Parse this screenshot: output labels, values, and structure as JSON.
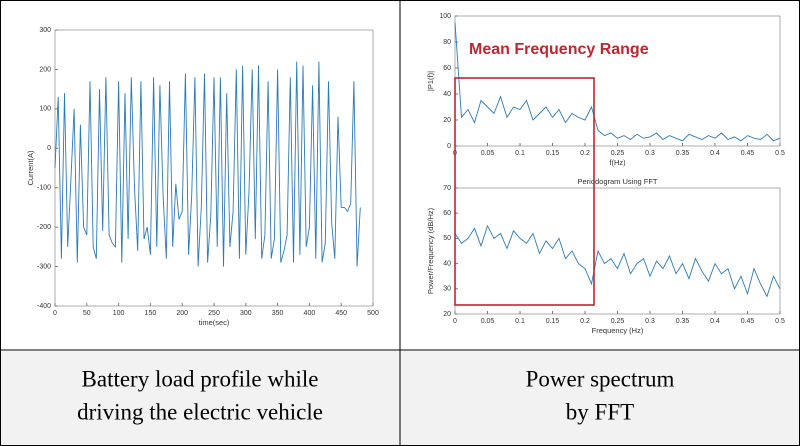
{
  "chart_data": [
    {
      "type": "line",
      "xlabel": "time(sec)",
      "ylabel": "Current(A)",
      "xlim": [
        0,
        500
      ],
      "ylim": [
        -400,
        300
      ],
      "xticks": [
        0,
        50,
        100,
        150,
        200,
        250,
        300,
        350,
        400,
        450,
        500
      ],
      "yticks": [
        -400,
        -300,
        -200,
        -100,
        0,
        100,
        200,
        300
      ],
      "grid": false,
      "x": [
        0,
        5,
        10,
        15,
        20,
        25,
        30,
        35,
        40,
        45,
        50,
        55,
        60,
        65,
        70,
        75,
        80,
        85,
        90,
        95,
        100,
        105,
        110,
        115,
        120,
        125,
        130,
        135,
        140,
        145,
        150,
        155,
        160,
        165,
        170,
        175,
        180,
        185,
        190,
        195,
        200,
        205,
        210,
        215,
        220,
        225,
        230,
        235,
        240,
        245,
        250,
        255,
        260,
        265,
        270,
        275,
        280,
        285,
        290,
        295,
        300,
        305,
        310,
        315,
        320,
        325,
        330,
        335,
        340,
        345,
        350,
        355,
        360,
        365,
        370,
        375,
        380,
        385,
        390,
        395,
        400,
        405,
        410,
        415,
        420,
        425,
        430,
        435,
        440,
        445,
        450,
        455,
        460,
        465,
        470,
        475,
        480
      ],
      "series": [
        {
          "color": "#2b7bba",
          "values": [
            -50,
            130,
            -280,
            140,
            -250,
            -80,
            100,
            -290,
            60,
            -200,
            -220,
            170,
            -250,
            -280,
            150,
            -210,
            180,
            -220,
            -240,
            -250,
            170,
            -290,
            140,
            -230,
            180,
            -100,
            -260,
            170,
            -230,
            -200,
            -270,
            180,
            -250,
            160,
            -120,
            -280,
            170,
            -250,
            -90,
            -180,
            -160,
            190,
            -270,
            -120,
            180,
            -300,
            -150,
            190,
            -290,
            -170,
            180,
            -250,
            180,
            -300,
            140,
            -250,
            -160,
            200,
            -280,
            210,
            -270,
            -110,
            200,
            -230,
            210,
            -280,
            -220,
            170,
            -280,
            -230,
            200,
            -290,
            -260,
            -220,
            180,
            -290,
            220,
            -270,
            210,
            -250,
            -200,
            160,
            -280,
            220,
            -290,
            -240,
            170,
            -190,
            -280,
            80,
            -150,
            -150,
            -160,
            -140,
            170,
            -300,
            -150
          ]
        }
      ]
    },
    {
      "type": "line",
      "xlabel": "f(Hz)",
      "ylabel": "|P1(f)|",
      "annotation": "Mean Frequency Range",
      "xlim": [
        0,
        0.5
      ],
      "ylim": [
        0,
        100
      ],
      "xticks": [
        0,
        0.05,
        0.1,
        0.15,
        0.2,
        0.25,
        0.3,
        0.35,
        0.4,
        0.45,
        0.5
      ],
      "yticks": [
        0,
        20,
        40,
        60,
        80,
        100
      ],
      "grid": false,
      "x": [
        0,
        0.01,
        0.02,
        0.03,
        0.04,
        0.05,
        0.06,
        0.07,
        0.08,
        0.09,
        0.1,
        0.11,
        0.12,
        0.13,
        0.14,
        0.15,
        0.16,
        0.17,
        0.18,
        0.19,
        0.2,
        0.21,
        0.22,
        0.23,
        0.24,
        0.25,
        0.26,
        0.27,
        0.28,
        0.29,
        0.3,
        0.31,
        0.32,
        0.33,
        0.34,
        0.35,
        0.36,
        0.37,
        0.38,
        0.39,
        0.4,
        0.41,
        0.42,
        0.43,
        0.44,
        0.45,
        0.46,
        0.47,
        0.48,
        0.49,
        0.5
      ],
      "series": [
        {
          "color": "#2b7bba",
          "values": [
            95,
            22,
            28,
            18,
            35,
            30,
            25,
            38,
            22,
            30,
            28,
            35,
            20,
            25,
            30,
            22,
            28,
            18,
            25,
            22,
            20,
            30,
            12,
            8,
            10,
            6,
            8,
            5,
            9,
            6,
            7,
            10,
            5,
            8,
            6,
            4,
            9,
            7,
            5,
            8,
            6,
            10,
            5,
            7,
            4,
            8,
            6,
            5,
            9,
            4,
            6
          ]
        }
      ]
    },
    {
      "type": "line",
      "title": "Periodogram Using FFT",
      "xlabel": "Frequency (Hz)",
      "ylabel": "Power/Frequency (dB/Hz)",
      "xlim": [
        0,
        0.5
      ],
      "ylim": [
        20,
        70
      ],
      "xticks": [
        0,
        0.05,
        0.1,
        0.15,
        0.2,
        0.25,
        0.3,
        0.35,
        0.4,
        0.45,
        0.5
      ],
      "yticks": [
        20,
        30,
        40,
        50,
        60,
        70
      ],
      "grid": false,
      "x": [
        0,
        0.01,
        0.02,
        0.03,
        0.04,
        0.05,
        0.06,
        0.07,
        0.08,
        0.09,
        0.1,
        0.11,
        0.12,
        0.13,
        0.14,
        0.15,
        0.16,
        0.17,
        0.18,
        0.19,
        0.2,
        0.21,
        0.22,
        0.23,
        0.24,
        0.25,
        0.26,
        0.27,
        0.28,
        0.29,
        0.3,
        0.31,
        0.32,
        0.33,
        0.34,
        0.35,
        0.36,
        0.37,
        0.38,
        0.39,
        0.4,
        0.41,
        0.42,
        0.43,
        0.44,
        0.45,
        0.46,
        0.47,
        0.48,
        0.49,
        0.5
      ],
      "series": [
        {
          "color": "#2b7bba",
          "values": [
            52,
            48,
            50,
            54,
            47,
            55,
            50,
            52,
            46,
            53,
            50,
            48,
            52,
            44,
            49,
            46,
            50,
            42,
            45,
            40,
            38,
            32,
            45,
            40,
            42,
            38,
            44,
            36,
            40,
            42,
            35,
            41,
            38,
            43,
            36,
            40,
            34,
            42,
            37,
            33,
            40,
            36,
            38,
            30,
            35,
            28,
            38,
            32,
            27,
            35,
            30
          ]
        }
      ]
    }
  ],
  "captions": [
    [
      "Battery load profile while",
      "driving the electric vehicle"
    ],
    [
      "Power spectrum",
      "by FFT"
    ]
  ]
}
